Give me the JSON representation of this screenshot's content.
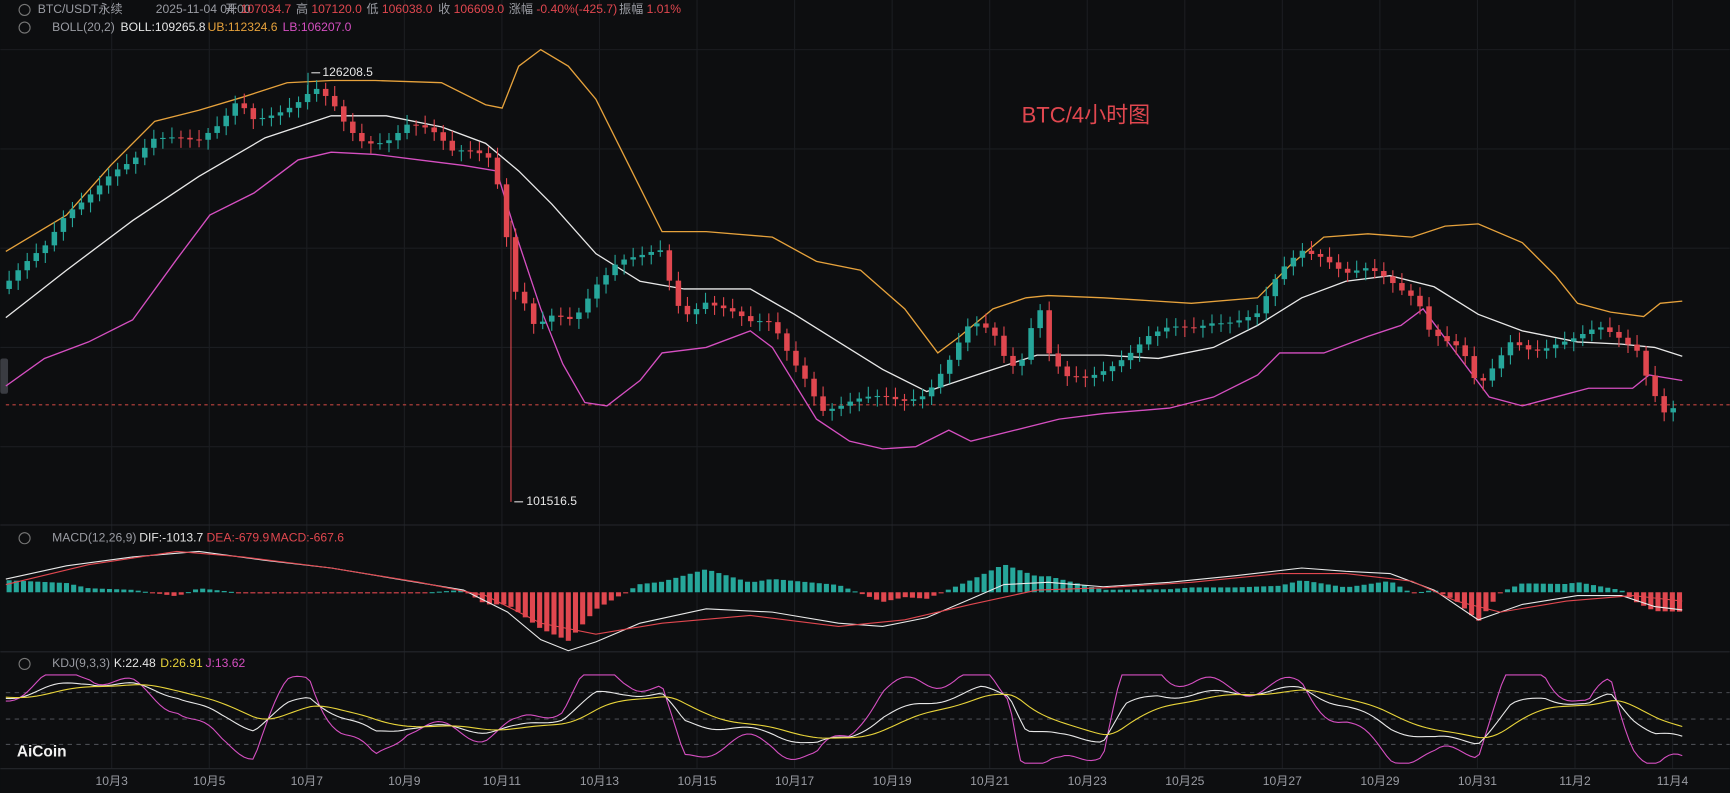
{
  "header": {
    "symbol": "BTC/USDT永续",
    "time": "2025-11-04 04:00",
    "fields": [
      {
        "label": "开",
        "value": "107034.7"
      },
      {
        "label": "高",
        "value": "107120.0"
      },
      {
        "label": "低",
        "value": "106038.0"
      },
      {
        "label": "收",
        "value": "106609.0"
      },
      {
        "label": "涨幅",
        "value": "-0.40%(-425.7)"
      },
      {
        "label": "振幅",
        "value": "1.01%"
      }
    ]
  },
  "boll": {
    "name": "BOLL(20,2)",
    "mid": "BOLL:109265.8",
    "ub": "UB:112324.6",
    "lb": "LB:106207.0"
  },
  "annotations": {
    "high": "126208.5",
    "low": "101516.5",
    "watermark": "BTC/4小时图"
  },
  "macd": {
    "name": "MACD(12,26,9)",
    "dif": "DIF:-1013.7",
    "dea": "DEA:-679.9",
    "macd": "MACD:-667.6"
  },
  "kdj": {
    "name": "KDJ(9,3,3)",
    "k": "K:22.48",
    "d": "D:26.91",
    "j": "J:13.62"
  },
  "x_axis": [
    "10月3",
    "10月5",
    "10月7",
    "10月9",
    "10月11",
    "10月13",
    "10月15",
    "10月17",
    "10月19",
    "10月21",
    "10月23",
    "10月25",
    "10月27",
    "10月29",
    "10月31",
    "11月2",
    "11月4"
  ],
  "logo": "AiCoin"
}
